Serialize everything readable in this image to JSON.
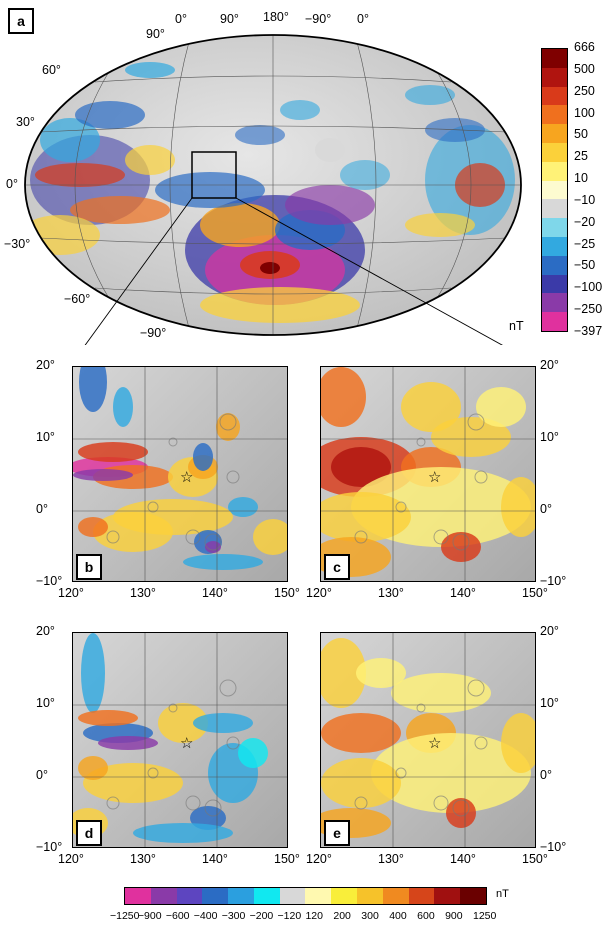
{
  "panel_labels": [
    "a",
    "b",
    "c",
    "d",
    "e"
  ],
  "global_map": {
    "lon_labels_top": [
      "0°",
      "90°",
      "180°",
      "−90°",
      "0°"
    ],
    "lat_labels_left": [
      "90°",
      "60°",
      "30°",
      "0°",
      "−30°",
      "−60°",
      "−90°"
    ]
  },
  "regional": {
    "lat_labels": [
      "20°",
      "10°",
      "0°",
      "−10°"
    ],
    "lon_labels": [
      "120°",
      "130°",
      "140°",
      "150°"
    ],
    "star_marker": "star-icon"
  },
  "vertical_colorbar": {
    "unit": "nT",
    "ticks": [
      "666",
      "500",
      "250",
      "100",
      "50",
      "25",
      "10",
      "−10",
      "−20",
      "−25",
      "−50",
      "−100",
      "−250",
      "−397"
    ],
    "colors": [
      "#7f0000",
      "#b0140f",
      "#d93a1a",
      "#f0701e",
      "#f7a51f",
      "#fbd13a",
      "#fff277",
      "#fdfbd0",
      "#d8d8d8",
      "#7fd7ea",
      "#32a9e0",
      "#2b6cc4",
      "#3b3aa8",
      "#8a3aa8",
      "#e0319e"
    ]
  },
  "horizontal_colorbar": {
    "unit": "nT",
    "ticks": [
      "−1250",
      "−900",
      "−600",
      "−400",
      "−300",
      "−200",
      "−120",
      "120",
      "200",
      "300",
      "400",
      "600",
      "900",
      "1250"
    ],
    "colors": [
      "#e0319e",
      "#8a3aa8",
      "#5d45c0",
      "#2b6cc4",
      "#2b9fdf",
      "#11e8f0",
      "#d8d8d8",
      "#fff9b0",
      "#f9ee3a",
      "#f6c22a",
      "#f08a20",
      "#d6451a",
      "#a01010",
      "#6a0000"
    ]
  }
}
